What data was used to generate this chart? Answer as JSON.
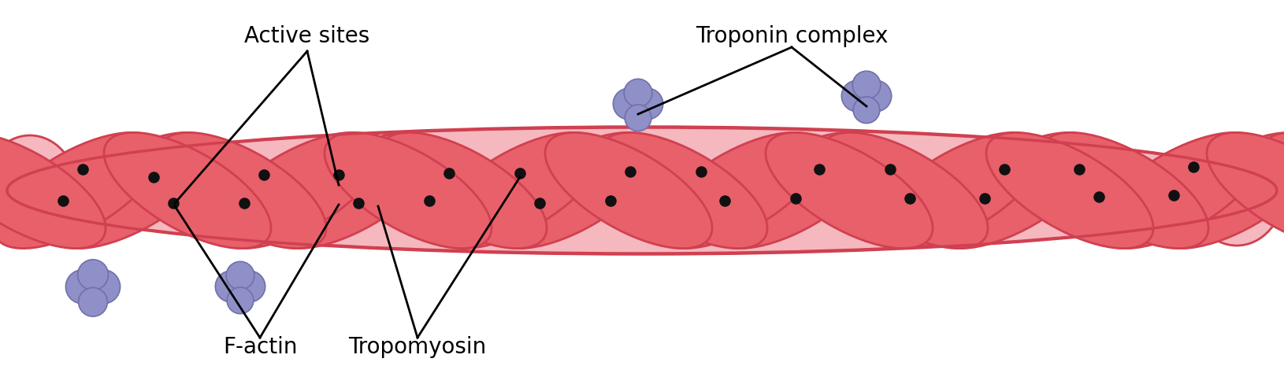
{
  "fig_width": 16.3,
  "fig_height": 4.79,
  "dpi": 100,
  "bg_color": "#ffffff",
  "strand_color_dark": "#e8606a",
  "strand_color_light": "#f5b8be",
  "strand_outline": "#d04050",
  "troponin_fill": "#9090c8",
  "troponin_edge": "#7070aa",
  "active_site_color": "#111111",
  "line_color": "#000000",
  "labels": {
    "active_sites": "Active sites",
    "troponin_complex": "Troponin complex",
    "f_actin": "F-actin",
    "tropomyosin": "Tropomyosin"
  },
  "font_size": 20,
  "label_color": "#000000"
}
